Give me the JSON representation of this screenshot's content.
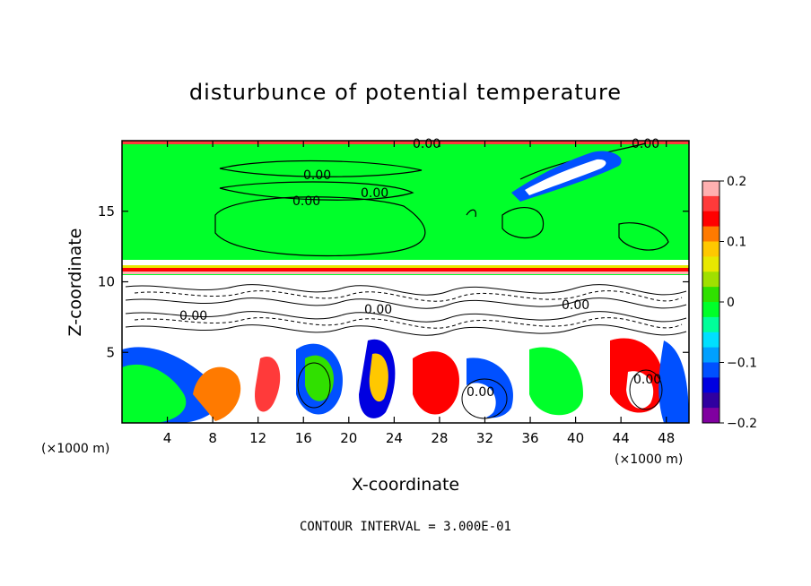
{
  "chart_data": {
    "type": "heatmap",
    "title": "disturbunce of potential temperature",
    "xlabel": "X-coordinate",
    "ylabel": "Z-coordinate",
    "x_unit": "(×1000 m)",
    "z_unit": "(×1000 m)",
    "xlim": [
      0,
      50
    ],
    "ylim": [
      0,
      20
    ],
    "x_ticks": [
      4,
      8,
      12,
      16,
      20,
      24,
      28,
      32,
      36,
      40,
      44,
      48
    ],
    "y_ticks": [
      5,
      10,
      15
    ],
    "colorbar": {
      "range": [
        -0.2,
        0.2
      ],
      "tick_values": [
        0.2,
        0.1,
        0,
        -0.1,
        -0.2
      ],
      "tick_labels": [
        "0.2",
        "0.1",
        "0",
        "−0.1",
        "−0.2"
      ],
      "colors": [
        "#ffb0b0",
        "#ff3a3a",
        "#ff0000",
        "#ff7a00",
        "#ffc800",
        "#e8e800",
        "#a0e000",
        "#30e000",
        "#00ff2a",
        "#00ff9a",
        "#00e0ff",
        "#00a0ff",
        "#0050ff",
        "#0000e0",
        "#3000a0",
        "#8000a0"
      ]
    },
    "contour_labels": [
      "0.00",
      "0.00",
      "0.00",
      "0.00",
      "0.00",
      "0.00",
      "0.00",
      "0.00",
      "0.00",
      "0.00"
    ],
    "contour_interval_text": "CONTOUR INTERVAL = 3.000E-01",
    "grid": false,
    "legend": "colorbar-right"
  },
  "colors": {
    "background_field": "#00ff2a",
    "stable_layer": "#ff3a3a",
    "warm_core": "#ffffff",
    "cool_edge": "#0050ff"
  }
}
